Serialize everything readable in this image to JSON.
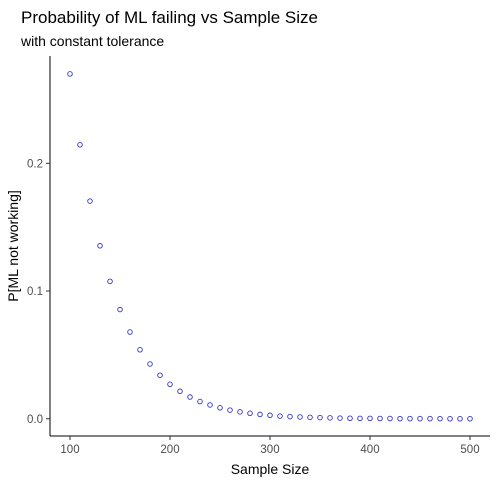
{
  "chart_data": {
    "type": "scatter",
    "title": "Probability of ML failing vs Sample Size",
    "subtitle": "with constant tolerance",
    "xlabel": "Sample Size",
    "ylabel": "P[ML not working]",
    "xlim": [
      80,
      520
    ],
    "ylim": [
      -0.0135,
      0.284
    ],
    "x_ticks": [
      100,
      200,
      300,
      400,
      500
    ],
    "x_tick_labels": [
      "100",
      "200",
      "300",
      "400",
      "500"
    ],
    "y_ticks": [
      0.0,
      0.1,
      0.2
    ],
    "y_tick_labels": [
      "0.0",
      "0.1",
      "0.2"
    ],
    "grid": false,
    "legend": "none",
    "marker": "open-circle",
    "point_color": "#3333cc",
    "series": [
      {
        "x": [
          100,
          110,
          120,
          130,
          140,
          150,
          160,
          170,
          180,
          190,
          200,
          210,
          220,
          230,
          240,
          250,
          260,
          270,
          280,
          290,
          300,
          310,
          320,
          330,
          340,
          350,
          360,
          370,
          380,
          390,
          400,
          410,
          420,
          430,
          440,
          450,
          460,
          470,
          480,
          490,
          500
        ],
        "y": [
          0.27,
          0.2145,
          0.1704,
          0.1354,
          0.1076,
          0.0855,
          0.0679,
          0.054,
          0.0429,
          0.0341,
          0.027,
          0.0215,
          0.017,
          0.0135,
          0.0108,
          0.0086,
          0.0068,
          0.0054,
          0.0043,
          0.0034,
          0.0027,
          0.0021,
          0.0017,
          0.0014,
          0.0011,
          0.0009,
          0.0007,
          0.0005,
          0.0004,
          0.0003,
          0.0003,
          0.0002,
          0.0002,
          0.0001,
          0.0001,
          0.0001,
          0.0001,
          0.0001,
          0.0,
          0.0,
          0.0
        ]
      }
    ]
  }
}
